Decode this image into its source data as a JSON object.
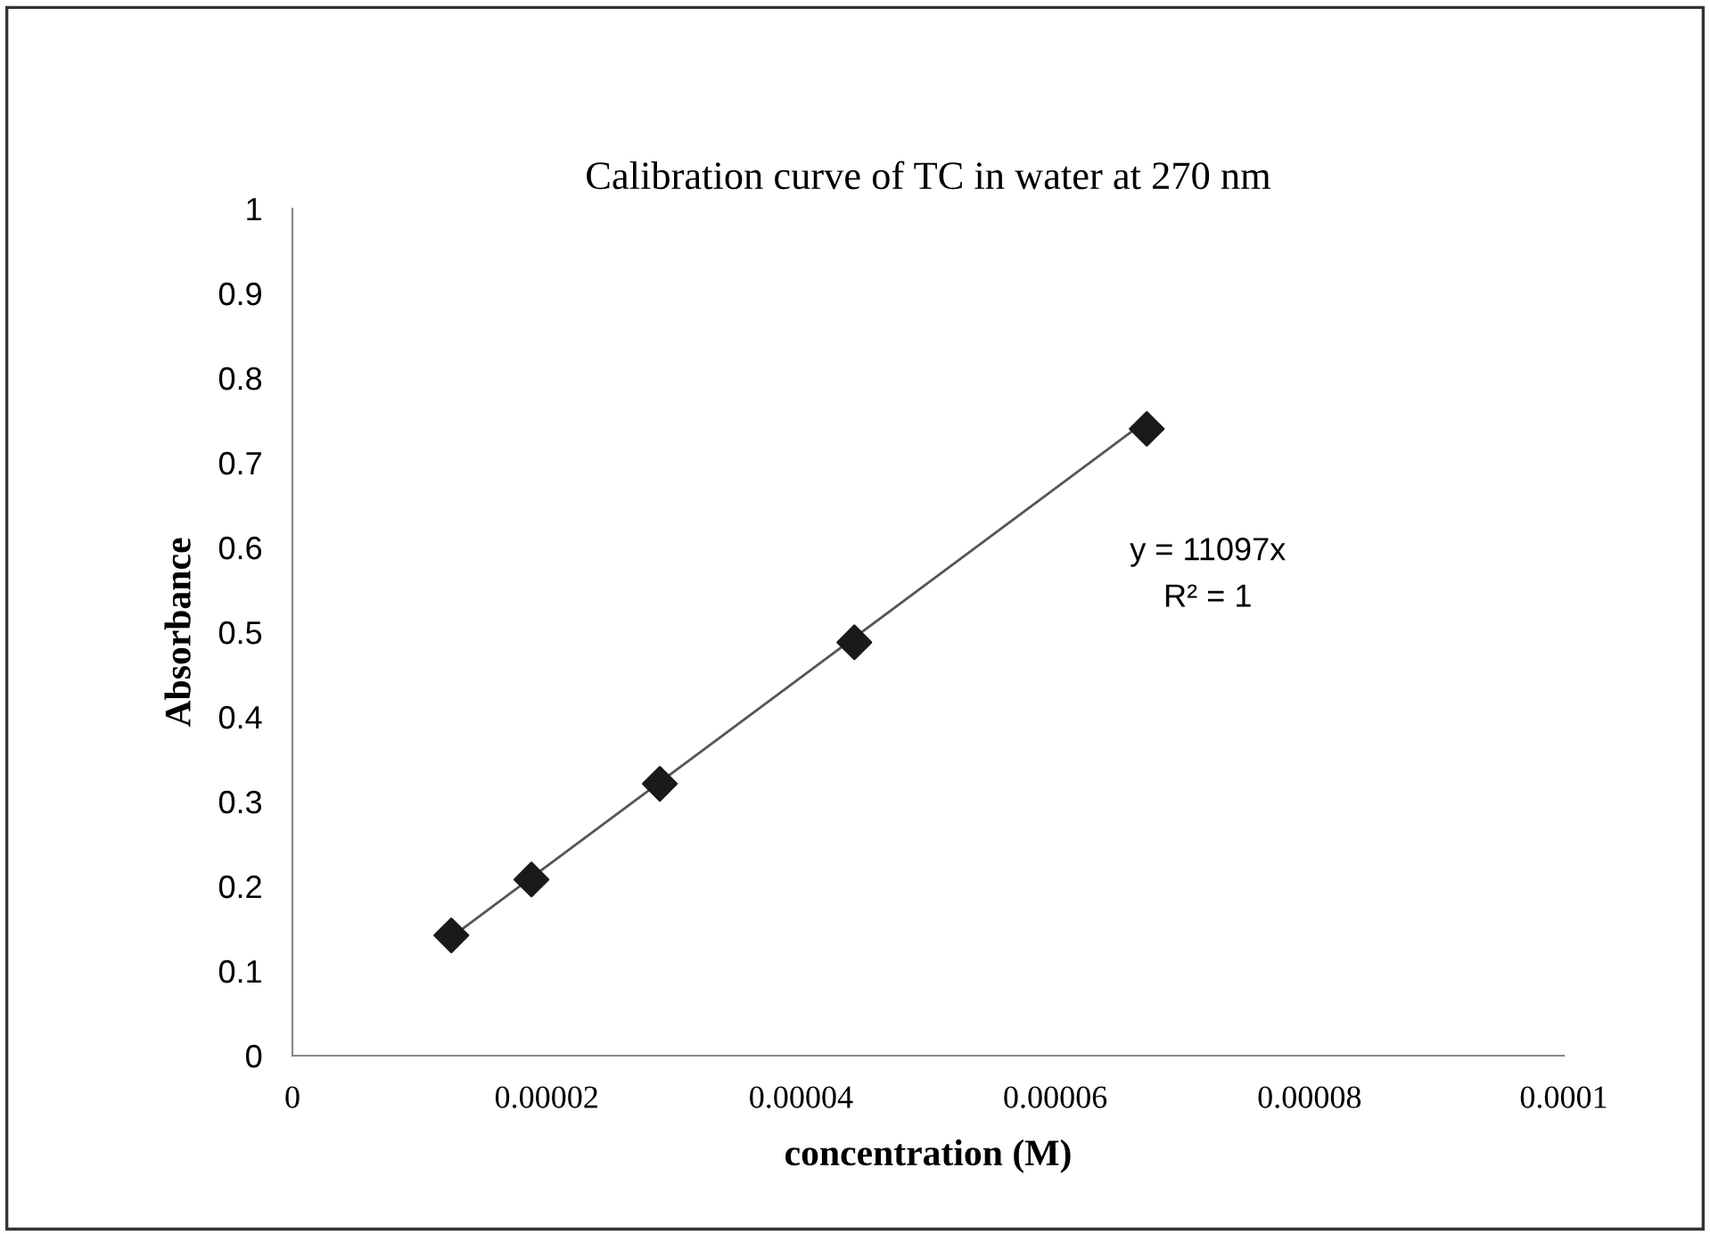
{
  "chart_data": {
    "type": "scatter",
    "title": "Calibration curve of TC in water at 270 nm",
    "xlabel": "concentration (M)",
    "ylabel": "Absorbance",
    "series": [
      {
        "color": "#1a1a1a",
        "marker": "diamond",
        "x": [
          1.25e-05,
          1.88e-05,
          2.89e-05,
          4.42e-05,
          6.72e-05
        ],
        "values": [
          0.142,
          0.208,
          0.321,
          0.488,
          0.74
        ]
      },
      {
        "type": "line",
        "color": "#555555",
        "line_style": "solid",
        "x": [
          1.25e-05,
          6.72e-05
        ],
        "values": [
          0.14,
          0.75
        ]
      }
    ],
    "annotations": [
      "y = 11097x",
      "R² = 1"
    ],
    "xlim": [
      0,
      0.0001
    ],
    "xticks": [
      0,
      {
        "value": 2e-05,
        "label": "0.00002"
      },
      {
        "value": 4e-05,
        "label": "0.00004"
      },
      {
        "value": 6e-05,
        "label": "0.00006"
      },
      {
        "value": 8e-05,
        "label": "0.00008"
      },
      {
        "value": 0.0001,
        "label": "0.0001"
      }
    ],
    "ylim": [
      0,
      1
    ],
    "yticks": [
      0,
      0.1,
      0.2,
      0.3,
      0.4,
      0.5,
      0.6,
      0.7,
      0.8,
      0.9,
      1
    ],
    "grid": false,
    "legend": false
  }
}
